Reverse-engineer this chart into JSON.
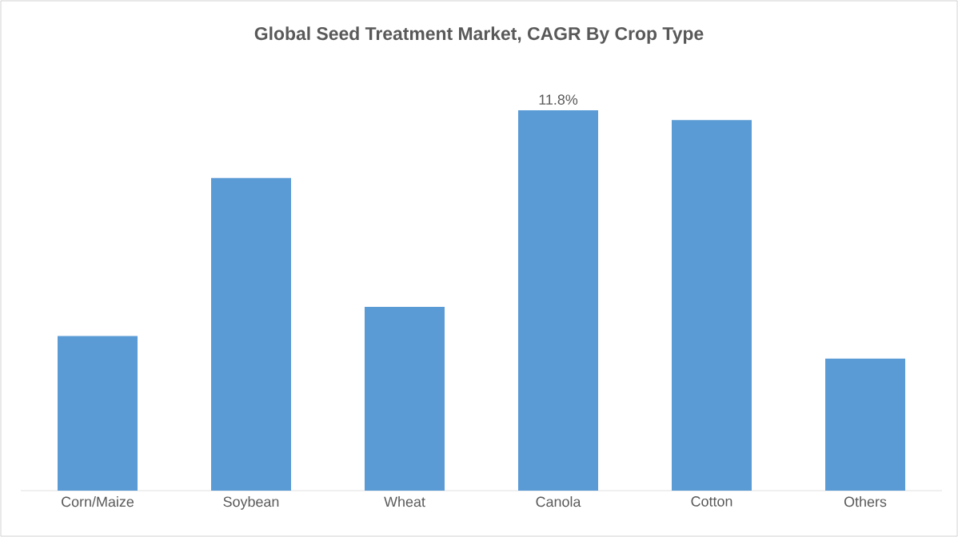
{
  "chart_data": {
    "type": "bar",
    "title": "Global Seed Treatment Market, CAGR By Crop Type",
    "categories": [
      "Corn/Maize",
      "Soybean",
      "Wheat",
      "Canola",
      "Cotton",
      "Others"
    ],
    "values": [
      4.8,
      9.7,
      5.7,
      11.8,
      11.5,
      4.1
    ],
    "value_labels": [
      null,
      null,
      null,
      "11.8%",
      null,
      null
    ],
    "color": "#5b9bd5"
  }
}
